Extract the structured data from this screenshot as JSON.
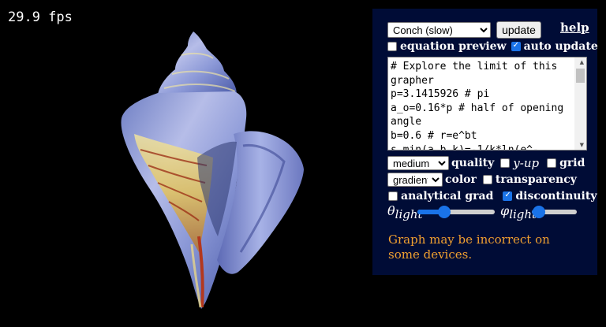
{
  "fps": "29.9 fps",
  "controls": {
    "preset_selected": "Conch (slow)",
    "update_label": "update",
    "help_label": "help",
    "equation_preview_label": "equation preview",
    "equation_preview_checked": false,
    "auto_update_label": "auto update",
    "auto_update_checked": true,
    "equation_text": "# Explore the limit of this grapher\np=3.1415926 # pi\na_o=0.16*p # half of opening angle\nb=0.6 # r=e^bt\ns_min(a,b,k)=-1/k*ln(e^-",
    "quality_selected": "medium",
    "quality_label": "quality",
    "y_up_label": "y-up",
    "y_up_checked": false,
    "grid_label": "grid",
    "grid_checked": false,
    "color_selected": "gradient",
    "color_label": "color",
    "transparency_label": "transparency",
    "transparency_checked": false,
    "analytical_grad_label": "analytical grad",
    "analytical_grad_checked": false,
    "discontinuity_label": "discontinuity",
    "discontinuity_checked": true,
    "theta_light_symbol": "θ",
    "theta_light_sub": "light",
    "theta_light_level": 0.35,
    "phi_light_symbol": "φ",
    "phi_light_sub": "light",
    "phi_light_level": 0.15
  },
  "warning": "Graph may be incorrect on some devices.",
  "colors": {
    "panel_bg": "#000c36",
    "warning": "#f0a030",
    "accent": "#1a73e8",
    "shell_blue": "#8fa3e0",
    "shell_yellow": "#e8d07a",
    "shell_red": "#a8321a"
  }
}
